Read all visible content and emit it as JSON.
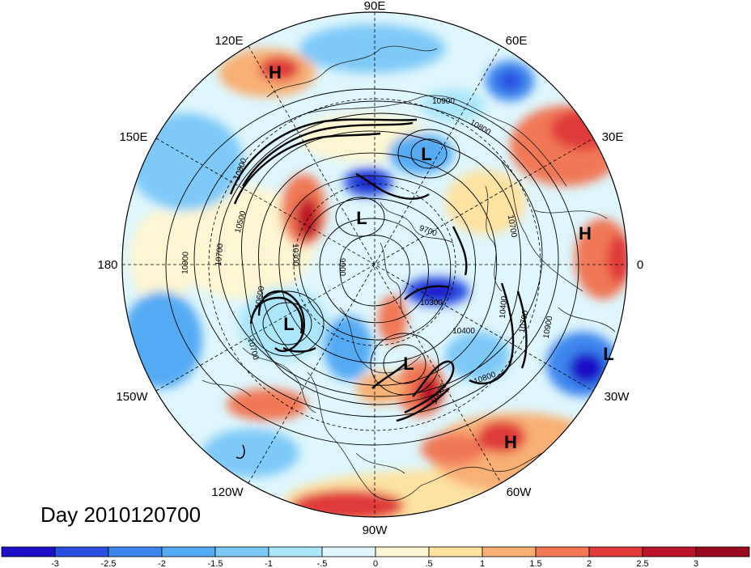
{
  "title": "Day 2010120700",
  "longitude_labels": [
    "90E",
    "60E",
    "30E",
    "0",
    "30W",
    "60W",
    "90W",
    "120W",
    "150W",
    "180",
    "150E",
    "120E"
  ],
  "pressure_centers": [
    "H",
    "L",
    "L",
    "H",
    "L",
    "L",
    "L",
    "H"
  ],
  "contour_labels": [
    "10900",
    "10800",
    "10800",
    "10500",
    "10700",
    "10300",
    "9900",
    "9700",
    "10700",
    "10400",
    "10900",
    "10600",
    "10700",
    "10300",
    "10400",
    "10700",
    "10600",
    "10800",
    "10900"
  ],
  "colorbar": {
    "labels": [
      "-3",
      "-2.5",
      "-2",
      "-1.5",
      "-1",
      "-.5",
      "0",
      ".5",
      "1",
      "1.5",
      "2",
      "2.5",
      "3"
    ],
    "colors": [
      "#1e10c8",
      "#2a4fe0",
      "#3d86ee",
      "#55aaf4",
      "#7ec9f8",
      "#ace6fb",
      "#def6fc",
      "#fdf6d2",
      "#fde2a2",
      "#f8b074",
      "#f07856",
      "#e03a3a",
      "#bc1428",
      "#9a0a1c"
    ]
  }
}
